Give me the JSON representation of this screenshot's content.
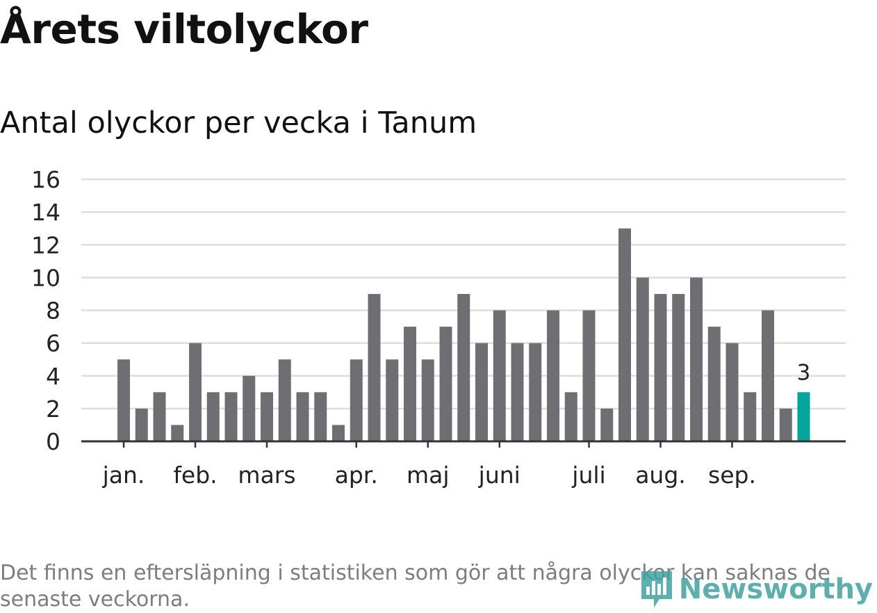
{
  "header": {
    "title": "Årets viltolyckor",
    "subtitle": "Antal olyckor per vecka i Tanum"
  },
  "footer": {
    "note": "Det finns en eftersläpning i statistiken som gör att några olyckor kan saknas de senaste veckorna.",
    "brand": "Newsworthy"
  },
  "colors": {
    "bar": "#6f6e73",
    "highlight": "#00a59b",
    "grid": "#dddddd",
    "axis": "#333333",
    "text": "#222222",
    "brand": "#3fa3a0"
  },
  "icons": {
    "brand_logo": "newsworthy-logo-icon"
  },
  "chart_data": {
    "type": "bar",
    "title": "Antal olyckor per vecka i Tanum",
    "xlabel": "",
    "ylabel": "",
    "ylim": [
      0,
      16
    ],
    "yticks": [
      0,
      2,
      4,
      6,
      8,
      10,
      12,
      14,
      16
    ],
    "grid": true,
    "values": [
      5,
      2,
      3,
      1,
      6,
      3,
      3,
      4,
      3,
      5,
      3,
      3,
      1,
      5,
      9,
      5,
      7,
      5,
      7,
      9,
      6,
      8,
      6,
      6,
      8,
      3,
      8,
      2,
      13,
      10,
      9,
      9,
      10,
      7,
      6,
      3,
      8,
      2,
      3
    ],
    "highlight_index": 38,
    "data_labels": [
      {
        "index": 38,
        "text": "3"
      }
    ],
    "month_ticks": [
      {
        "label": "jan.",
        "bar_index": 0
      },
      {
        "label": "feb.",
        "bar_index": 4
      },
      {
        "label": "mars",
        "bar_index": 8
      },
      {
        "label": "apr.",
        "bar_index": 13
      },
      {
        "label": "maj",
        "bar_index": 17
      },
      {
        "label": "juni",
        "bar_index": 21
      },
      {
        "label": "juli",
        "bar_index": 26
      },
      {
        "label": "aug.",
        "bar_index": 30
      },
      {
        "label": "sep.",
        "bar_index": 34
      }
    ]
  }
}
